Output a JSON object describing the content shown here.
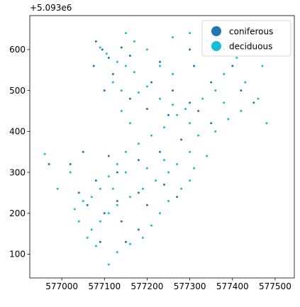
{
  "chart_data": {
    "type": "scatter",
    "title": "",
    "xlabel": "",
    "ylabel": "",
    "y_offset_label": "+5.093e6",
    "xlim": [
      576925,
      577545
    ],
    "ylim": [
      42,
      683
    ],
    "x_ticks": [
      577000,
      577100,
      577200,
      577300,
      577400,
      577500
    ],
    "x_tick_labels": [
      "577000",
      "577100",
      "577200",
      "577300",
      "577400",
      "577500"
    ],
    "y_ticks": [
      100,
      200,
      300,
      400,
      500,
      600
    ],
    "y_tick_labels": [
      "100",
      "200",
      "300",
      "400",
      "500",
      "600"
    ],
    "grid": false,
    "legend_position": "top-right",
    "series": [
      {
        "name": "coniferous",
        "color": "#1f77b4",
        "points": [
          [
            577080,
            620
          ],
          [
            577095,
            600
          ],
          [
            577110,
            580
          ],
          [
            577075,
            560
          ],
          [
            577120,
            540
          ],
          [
            577140,
            605
          ],
          [
            577160,
            585
          ],
          [
            577100,
            500
          ],
          [
            577160,
            480
          ],
          [
            577200,
            455
          ],
          [
            577250,
            440
          ],
          [
            577300,
            470
          ],
          [
            577350,
            520
          ],
          [
            577400,
            560
          ],
          [
            577420,
            500
          ],
          [
            577450,
            470
          ],
          [
            577350,
            420
          ],
          [
            577280,
            380
          ],
          [
            577230,
            350
          ],
          [
            577180,
            330
          ],
          [
            577130,
            300
          ],
          [
            577080,
            280
          ],
          [
            577040,
            250
          ],
          [
            577060,
            220
          ],
          [
            577100,
            200
          ],
          [
            577140,
            180
          ],
          [
            577180,
            160
          ],
          [
            577200,
            220
          ],
          [
            577240,
            270
          ],
          [
            577270,
            240
          ],
          [
            577110,
            340
          ],
          [
            577050,
            350
          ],
          [
            577020,
            320
          ],
          [
            577090,
            130
          ],
          [
            577150,
            130
          ],
          [
            576970,
            320
          ],
          [
            577300,
            600
          ],
          [
            577230,
            570
          ],
          [
            577320,
            450
          ],
          [
            577260,
            500
          ],
          [
            577180,
            250
          ],
          [
            577130,
            230
          ],
          [
            577210,
            520
          ],
          [
            577310,
            560
          ]
        ]
      },
      {
        "name": "deciduous",
        "color": "#17becf",
        "points": [
          [
            577090,
            605
          ],
          [
            577105,
            590
          ],
          [
            577130,
            570
          ],
          [
            577150,
            560
          ],
          [
            577170,
            545
          ],
          [
            577120,
            520
          ],
          [
            577140,
            500
          ],
          [
            577180,
            495
          ],
          [
            577200,
            510
          ],
          [
            577230,
            480
          ],
          [
            577260,
            465
          ],
          [
            577290,
            455
          ],
          [
            577330,
            480
          ],
          [
            577360,
            500
          ],
          [
            577380,
            540
          ],
          [
            577410,
            580
          ],
          [
            577440,
            600
          ],
          [
            577470,
            560
          ],
          [
            577420,
            450
          ],
          [
            577390,
            430
          ],
          [
            577360,
            400
          ],
          [
            577320,
            390
          ],
          [
            577300,
            350
          ],
          [
            577270,
            320
          ],
          [
            577250,
            300
          ],
          [
            577220,
            280
          ],
          [
            577190,
            260
          ],
          [
            577160,
            240
          ],
          [
            577130,
            220
          ],
          [
            577110,
            200
          ],
          [
            577090,
            180
          ],
          [
            577070,
            160
          ],
          [
            577060,
            140
          ],
          [
            577080,
            120
          ],
          [
            577110,
            75
          ],
          [
            577130,
            105
          ],
          [
            577160,
            125
          ],
          [
            577190,
            140
          ],
          [
            577210,
            170
          ],
          [
            577230,
            200
          ],
          [
            577250,
            230
          ],
          [
            577280,
            260
          ],
          [
            577300,
            280
          ],
          [
            577310,
            310
          ],
          [
            577340,
            340
          ],
          [
            577300,
            420
          ],
          [
            577270,
            440
          ],
          [
            577240,
            410
          ],
          [
            577210,
            390
          ],
          [
            577180,
            370
          ],
          [
            577150,
            350
          ],
          [
            577130,
            320
          ],
          [
            577110,
            290
          ],
          [
            577090,
            260
          ],
          [
            577070,
            240
          ],
          [
            577050,
            230
          ],
          [
            577030,
            210
          ],
          [
            577040,
            180
          ],
          [
            577020,
            300
          ],
          [
            576960,
            345
          ],
          [
            576990,
            260
          ],
          [
            577140,
            450
          ],
          [
            577160,
            420
          ],
          [
            577200,
            600
          ],
          [
            577260,
            630
          ],
          [
            577300,
            640
          ],
          [
            577340,
            620
          ],
          [
            577380,
            600
          ],
          [
            577430,
            520
          ],
          [
            577460,
            480
          ],
          [
            577480,
            420
          ],
          [
            577380,
            470
          ],
          [
            577260,
            540
          ],
          [
            577230,
            560
          ],
          [
            577170,
            620
          ],
          [
            577150,
            640
          ],
          [
            577120,
            260
          ],
          [
            577150,
            300
          ],
          [
            577200,
            310
          ],
          [
            577240,
            330
          ]
        ]
      }
    ]
  }
}
